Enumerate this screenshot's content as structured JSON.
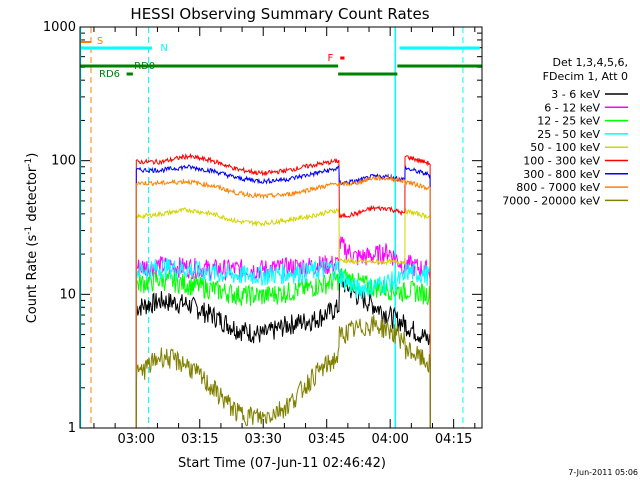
{
  "chart_data": {
    "type": "line",
    "title": "HESSI Observing Summary Count Rates",
    "xlabel": "Start Time (07-Jun-11 02:46:42)",
    "ylabel_main": "Count Rate (s",
    "ylabel_sup1": "-1",
    "ylabel_mid": " detector",
    "ylabel_sup2": "-1",
    "ylabel_end": ")",
    "y_scale": "log",
    "ylim": [
      1,
      1000
    ],
    "xlim_minutes": [
      0,
      95
    ],
    "x_ticks": [
      {
        "t": 13.3,
        "label": "03:00"
      },
      {
        "t": 28.3,
        "label": "03:15"
      },
      {
        "t": 43.3,
        "label": "03:30"
      },
      {
        "t": 58.3,
        "label": "03:45"
      },
      {
        "t": 73.3,
        "label": "04:00"
      },
      {
        "t": 88.3,
        "label": "04:15"
      }
    ],
    "y_ticks": [
      {
        "v": 1,
        "label": "1"
      },
      {
        "v": 10,
        "label": "10"
      },
      {
        "v": 100,
        "label": "100"
      },
      {
        "v": 1000,
        "label": "1000"
      }
    ],
    "legend_header": [
      "Det 1,3,4,5,6,",
      "FDecim 1, Att 0"
    ],
    "legend_position": "right",
    "series": [
      {
        "name": "3 - 6 keV",
        "color": "#000000",
        "seg1": [
          8,
          9,
          8.5,
          7,
          5.5,
          5,
          6,
          6.5,
          8
        ],
        "seg2": [
          13,
          10,
          8.5,
          7,
          6
        ],
        "seg3": [
          6,
          4.5
        ]
      },
      {
        "name": "6 - 12 keV",
        "color": "#ff00ff",
        "seg1": [
          16,
          16.5,
          16,
          15.5,
          15.5,
          15.5,
          16,
          16.5,
          17
        ],
        "seg2": [
          24,
          19,
          19.5,
          21,
          16
        ],
        "seg3": [
          17,
          15
        ]
      },
      {
        "name": "12 - 25 keV",
        "color": "#00ff00",
        "seg1": [
          12,
          13,
          12,
          11,
          10,
          9.8,
          10.5,
          11.5,
          13
        ],
        "seg2": [
          14,
          12.5,
          11.5,
          11,
          10.5
        ],
        "seg3": [
          11,
          10
        ]
      },
      {
        "name": "25 - 50 keV",
        "color": "#00ffff",
        "seg1": [
          15,
          16,
          15.5,
          14.5,
          14,
          14,
          14.5,
          15,
          16
        ],
        "seg2": [
          14,
          11,
          11.5,
          12.5,
          13
        ],
        "seg3": [
          15,
          14
        ]
      },
      {
        "name": "50 - 100 keV",
        "color": "#d4d400",
        "seg1": [
          38,
          40,
          43,
          40,
          35,
          34,
          36,
          39,
          43
        ],
        "seg2": [
          18,
          17.5,
          17.5,
          17.5,
          17.5
        ],
        "seg3": [
          42,
          38
        ]
      },
      {
        "name": "100 - 300 keV",
        "color": "#ff0000",
        "seg1": [
          98,
          98,
          108,
          100,
          86,
          80,
          85,
          93,
          100
        ],
        "seg2": [
          38,
          40,
          44,
          44,
          40
        ],
        "seg3": [
          108,
          95
        ]
      },
      {
        "name": "300 - 800 keV",
        "color": "#0000ff",
        "seg1": [
          85,
          85,
          90,
          84,
          74,
          70,
          73,
          80,
          88
        ],
        "seg2": [
          68,
          70,
          76,
          76,
          72
        ],
        "seg3": [
          88,
          78
        ]
      },
      {
        "name": "800 - 7000 keV",
        "color": "#ff8000",
        "seg1": [
          68,
          68,
          70,
          65,
          57,
          54,
          56,
          62,
          68
        ],
        "seg2": [
          66,
          68,
          74,
          74,
          70
        ],
        "seg3": [
          70,
          62
        ]
      },
      {
        "name": "7000 - 20000 keV",
        "color": "#808000",
        "seg1": [
          2.5,
          3.5,
          3,
          2,
          1.3,
          1.2,
          1.5,
          2.5,
          3.5
        ],
        "seg2": [
          5,
          5.5,
          6,
          5.5,
          4.5
        ],
        "seg3": [
          4,
          3
        ]
      }
    ],
    "flags": {
      "S": {
        "label": "S",
        "color": "#ff8000"
      },
      "N": {
        "label": "N",
        "color": "#00ffff"
      },
      "F": {
        "label": "F",
        "color": "#ff0000"
      },
      "RD0": {
        "label": "RD0",
        "color": "#008000"
      },
      "RD6": {
        "label": "RD6",
        "color": "#008000"
      }
    },
    "footer_date": "7-Jun-2011 05:06"
  }
}
